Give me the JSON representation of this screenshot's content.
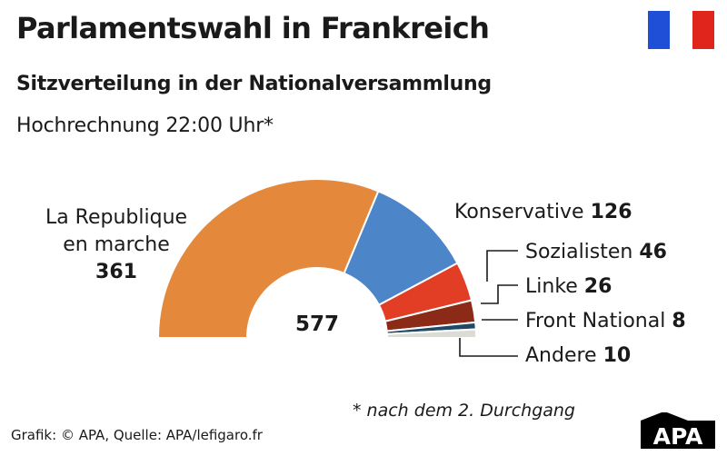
{
  "header": {
    "title": "Parlamentswahl in Frankreich",
    "subtitle": "Sitzverteilung in der Nationalversammlung",
    "note": "Hochrechnung 22:00 Uhr*"
  },
  "flag": {
    "icon": "france-flag-icon",
    "colors": [
      "#1f4fd6",
      "#ffffff",
      "#e0261c"
    ]
  },
  "chart_data": {
    "type": "pie",
    "variant": "semicircle-parliament",
    "total": 577,
    "total_label": "577",
    "series": [
      {
        "name_lines": [
          "La Republique",
          "en marche"
        ],
        "value": 361,
        "value_label": "361",
        "color": "#e4893b"
      },
      {
        "name_lines": [
          "Konservative"
        ],
        "value": 126,
        "value_label": "126",
        "color": "#4c86c9"
      },
      {
        "name_lines": [
          "Sozialisten"
        ],
        "value": 46,
        "value_label": "46",
        "color": "#e23d25"
      },
      {
        "name_lines": [
          "Linke"
        ],
        "value": 26,
        "value_label": "26",
        "color": "#8b2a16"
      },
      {
        "name_lines": [
          "Front National"
        ],
        "value": 8,
        "value_label": "8",
        "color": "#1e4a66"
      },
      {
        "name_lines": [
          "Andere"
        ],
        "value": 10,
        "value_label": "10",
        "color": "#dcdcd6"
      }
    ]
  },
  "footnote": "* nach dem 2. Durchgang",
  "source": "Grafik: © APA, Quelle: APA/lefigaro.fr",
  "logo": {
    "text": "APA",
    "icon": "apa-logo-icon"
  }
}
